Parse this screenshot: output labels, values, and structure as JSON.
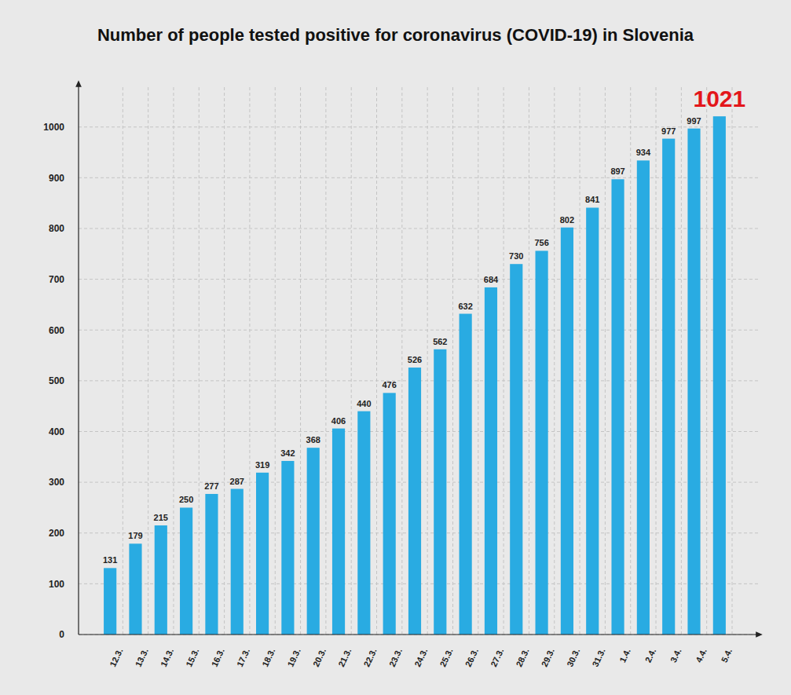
{
  "chart_data": {
    "type": "bar",
    "title": "Number of people tested positive for coronavirus (COVID-19) in Slovenia",
    "categories": [
      "12.3.",
      "13.3.",
      "14.3.",
      "15.3.",
      "16.3.",
      "17.3.",
      "18.3.",
      "19.3.",
      "20.3.",
      "21.3.",
      "22.3.",
      "23.3.",
      "24.3.",
      "25.3.",
      "26.3.",
      "27.3.",
      "28.3.",
      "29.3.",
      "30.3.",
      "31.3.",
      "1.4.",
      "2.4.",
      "3.4.",
      "4.4.",
      "5.4."
    ],
    "values": [
      131,
      179,
      215,
      250,
      277,
      287,
      319,
      342,
      368,
      406,
      440,
      476,
      526,
      562,
      632,
      684,
      730,
      756,
      802,
      841,
      897,
      934,
      977,
      997,
      1021
    ],
    "color": "#29abe2",
    "ylim": [
      0,
      1080
    ],
    "yticks": [
      0,
      100,
      200,
      300,
      400,
      500,
      600,
      700,
      800,
      900,
      1000
    ],
    "grid": true,
    "data_labels": true
  }
}
